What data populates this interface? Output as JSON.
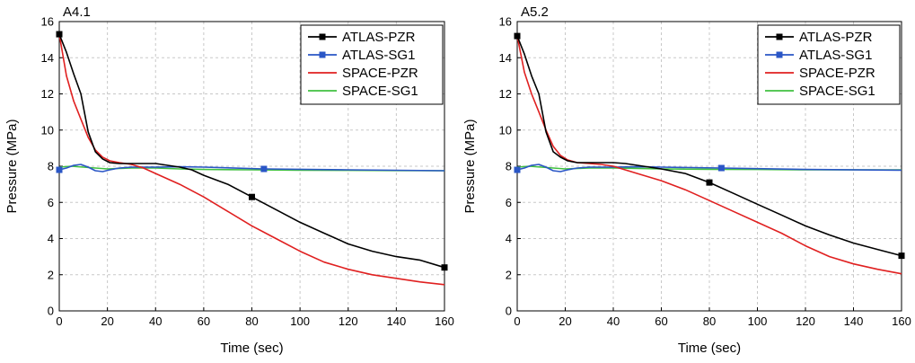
{
  "chart_data": [
    {
      "type": "line",
      "title": "A4.1",
      "xlabel": "Time (sec)",
      "ylabel": "Pressure (MPa)",
      "xlim": [
        0,
        160
      ],
      "ylim": [
        0,
        16
      ],
      "xticks": [
        0,
        20,
        40,
        60,
        80,
        100,
        120,
        140,
        160
      ],
      "yticks": [
        0,
        2,
        4,
        6,
        8,
        10,
        12,
        14,
        16
      ],
      "grid": true,
      "legend_position": "top-right",
      "series": [
        {
          "name": "ATLAS-PZR",
          "color": "#000000",
          "marker": "square",
          "marker_x": [
            0,
            80,
            160
          ],
          "x": [
            0,
            3,
            6,
            9,
            12,
            15,
            18,
            21,
            25,
            30,
            35,
            40,
            45,
            50,
            55,
            60,
            70,
            80,
            90,
            100,
            110,
            120,
            130,
            140,
            150,
            160
          ],
          "y": [
            15.3,
            14.3,
            13.1,
            12.0,
            9.9,
            8.8,
            8.4,
            8.2,
            8.15,
            8.15,
            8.15,
            8.15,
            8.05,
            7.95,
            7.8,
            7.5,
            7.0,
            6.3,
            5.6,
            4.9,
            4.3,
            3.7,
            3.3,
            3.0,
            2.8,
            2.4
          ]
        },
        {
          "name": "ATLAS-SG1",
          "color": "#2a56c6",
          "marker": "square",
          "marker_x": [
            0,
            85
          ],
          "x": [
            0,
            3,
            6,
            9,
            12,
            15,
            18,
            21,
            25,
            30,
            40,
            50,
            60,
            85,
            120,
            160
          ],
          "y": [
            7.8,
            7.9,
            8.05,
            8.1,
            7.95,
            7.75,
            7.7,
            7.8,
            7.9,
            7.95,
            7.95,
            7.97,
            7.95,
            7.85,
            7.8,
            7.75
          ]
        },
        {
          "name": "SPACE-PZR",
          "color": "#e02020",
          "marker": "none",
          "x": [
            0,
            3,
            6,
            9,
            12,
            15,
            18,
            21,
            25,
            30,
            35,
            40,
            50,
            60,
            70,
            80,
            90,
            100,
            110,
            120,
            130,
            140,
            150,
            160
          ],
          "y": [
            15.3,
            13.0,
            11.6,
            10.6,
            9.6,
            8.9,
            8.5,
            8.3,
            8.2,
            8.1,
            7.9,
            7.6,
            7.0,
            6.3,
            5.5,
            4.7,
            4.0,
            3.3,
            2.7,
            2.3,
            2.0,
            1.8,
            1.6,
            1.45
          ]
        },
        {
          "name": "SPACE-SG1",
          "color": "#40c040",
          "marker": "none",
          "x": [
            0,
            5,
            10,
            15,
            20,
            30,
            40,
            50,
            60,
            80,
            100,
            120,
            140,
            160
          ],
          "y": [
            7.95,
            8.0,
            7.95,
            7.9,
            7.85,
            7.9,
            7.9,
            7.85,
            7.82,
            7.8,
            7.78,
            7.77,
            7.76,
            7.75
          ]
        }
      ]
    },
    {
      "type": "line",
      "title": "A5.2",
      "xlabel": "Time (sec)",
      "ylabel": "Pressure (MPa)",
      "xlim": [
        0,
        160
      ],
      "ylim": [
        0,
        16
      ],
      "xticks": [
        0,
        20,
        40,
        60,
        80,
        100,
        120,
        140,
        160
      ],
      "yticks": [
        0,
        2,
        4,
        6,
        8,
        10,
        12,
        14,
        16
      ],
      "grid": true,
      "legend_position": "top-right",
      "series": [
        {
          "name": "ATLAS-PZR",
          "color": "#000000",
          "marker": "square",
          "marker_x": [
            0,
            80,
            160
          ],
          "x": [
            0,
            3,
            6,
            9,
            12,
            15,
            18,
            21,
            25,
            30,
            35,
            40,
            45,
            50,
            55,
            60,
            70,
            80,
            90,
            100,
            110,
            120,
            130,
            140,
            150,
            160
          ],
          "y": [
            15.2,
            14.2,
            13.0,
            12.0,
            9.9,
            8.8,
            8.5,
            8.3,
            8.2,
            8.2,
            8.2,
            8.2,
            8.15,
            8.05,
            7.95,
            7.85,
            7.6,
            7.1,
            6.5,
            5.9,
            5.3,
            4.7,
            4.2,
            3.75,
            3.4,
            3.05
          ]
        },
        {
          "name": "ATLAS-SG1",
          "color": "#2a56c6",
          "marker": "square",
          "marker_x": [
            0,
            85
          ],
          "x": [
            0,
            3,
            6,
            9,
            12,
            15,
            18,
            21,
            25,
            30,
            40,
            50,
            60,
            85,
            120,
            160
          ],
          "y": [
            7.8,
            7.9,
            8.05,
            8.1,
            7.95,
            7.75,
            7.7,
            7.8,
            7.9,
            7.95,
            7.95,
            7.97,
            7.95,
            7.9,
            7.82,
            7.78
          ]
        },
        {
          "name": "SPACE-PZR",
          "color": "#e02020",
          "marker": "none",
          "x": [
            0,
            3,
            6,
            9,
            12,
            15,
            18,
            21,
            25,
            30,
            35,
            40,
            50,
            60,
            70,
            80,
            90,
            100,
            110,
            120,
            130,
            140,
            150,
            160
          ],
          "y": [
            15.2,
            13.2,
            12.0,
            11.0,
            10.0,
            9.1,
            8.6,
            8.35,
            8.2,
            8.15,
            8.1,
            8.0,
            7.6,
            7.2,
            6.7,
            6.1,
            5.5,
            4.9,
            4.3,
            3.6,
            3.0,
            2.6,
            2.3,
            2.05
          ]
        },
        {
          "name": "SPACE-SG1",
          "color": "#40c040",
          "marker": "none",
          "x": [
            0,
            5,
            10,
            15,
            20,
            30,
            40,
            50,
            60,
            80,
            100,
            120,
            140,
            160
          ],
          "y": [
            7.95,
            8.0,
            7.95,
            7.9,
            7.85,
            7.9,
            7.9,
            7.88,
            7.85,
            7.83,
            7.82,
            7.8,
            7.8,
            7.8
          ]
        }
      ]
    }
  ]
}
